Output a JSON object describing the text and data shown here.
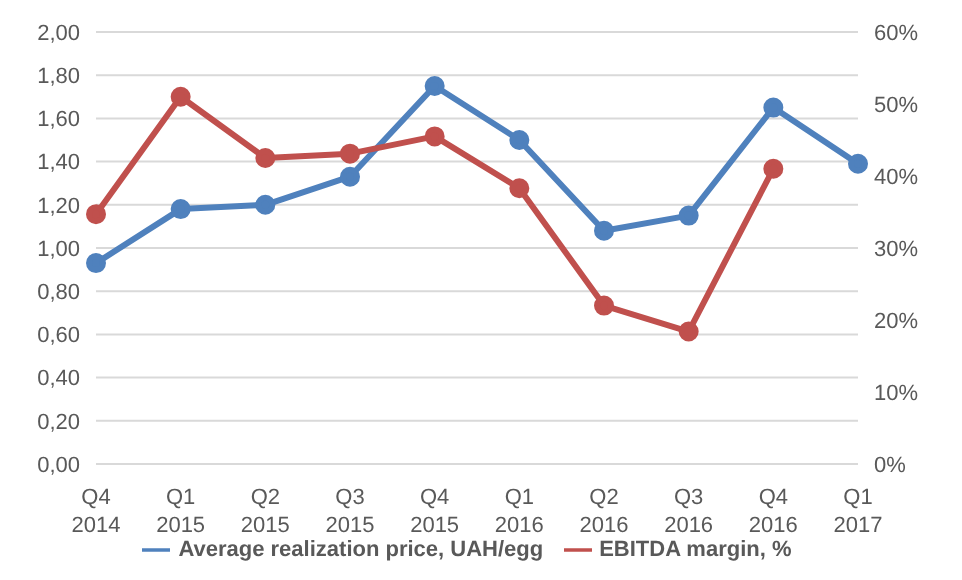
{
  "chart_data": {
    "type": "line",
    "categories": [
      "Q4 2014",
      "Q1 2015",
      "Q2 2015",
      "Q3 2015",
      "Q4 2015",
      "Q1 2016",
      "Q2 2016",
      "Q3 2016",
      "Q4 2016",
      "Q1 2017"
    ],
    "series": [
      {
        "name": "Average realization price, UAH/egg",
        "color": "#4f81bd",
        "values": [
          0.93,
          1.18,
          1.2,
          1.33,
          1.75,
          1.5,
          1.08,
          1.15,
          1.65,
          1.39
        ]
      },
      {
        "name": "EBITDA margin, %",
        "color": "#c0504d",
        "axis": "y2",
        "values": [
          34.7,
          51,
          42.5,
          43.1,
          45.5,
          38.3,
          22,
          18.4,
          41,
          null
        ]
      }
    ],
    "ylim": [
      0,
      2
    ],
    "yticks": [
      {
        "value": 0,
        "label": "0,00"
      },
      {
        "value": 0.2,
        "label": "0,20"
      },
      {
        "value": 0.4,
        "label": "0,40"
      },
      {
        "value": 0.6,
        "label": "0,60"
      },
      {
        "value": 0.8,
        "label": "0,80"
      },
      {
        "value": 1,
        "label": "1,00"
      },
      {
        "value": 1.2,
        "label": "1,20"
      },
      {
        "value": 1.4,
        "label": "1,40"
      },
      {
        "value": 1.6,
        "label": "1,60"
      },
      {
        "value": 1.8,
        "label": "1,80"
      },
      {
        "value": 2,
        "label": "2,00"
      }
    ],
    "y2lim": [
      0,
      60
    ],
    "y2ticks": [
      {
        "value": 0,
        "label": "0%"
      },
      {
        "value": 10,
        "label": "10%"
      },
      {
        "value": 20,
        "label": "20%"
      },
      {
        "value": 30,
        "label": "30%"
      },
      {
        "value": 40,
        "label": "40%"
      },
      {
        "value": 50,
        "label": "50%"
      },
      {
        "value": 60,
        "label": "60%"
      }
    ],
    "grid": "y",
    "legend": "bottom",
    "marker": "circle",
    "line_style": "solid"
  }
}
